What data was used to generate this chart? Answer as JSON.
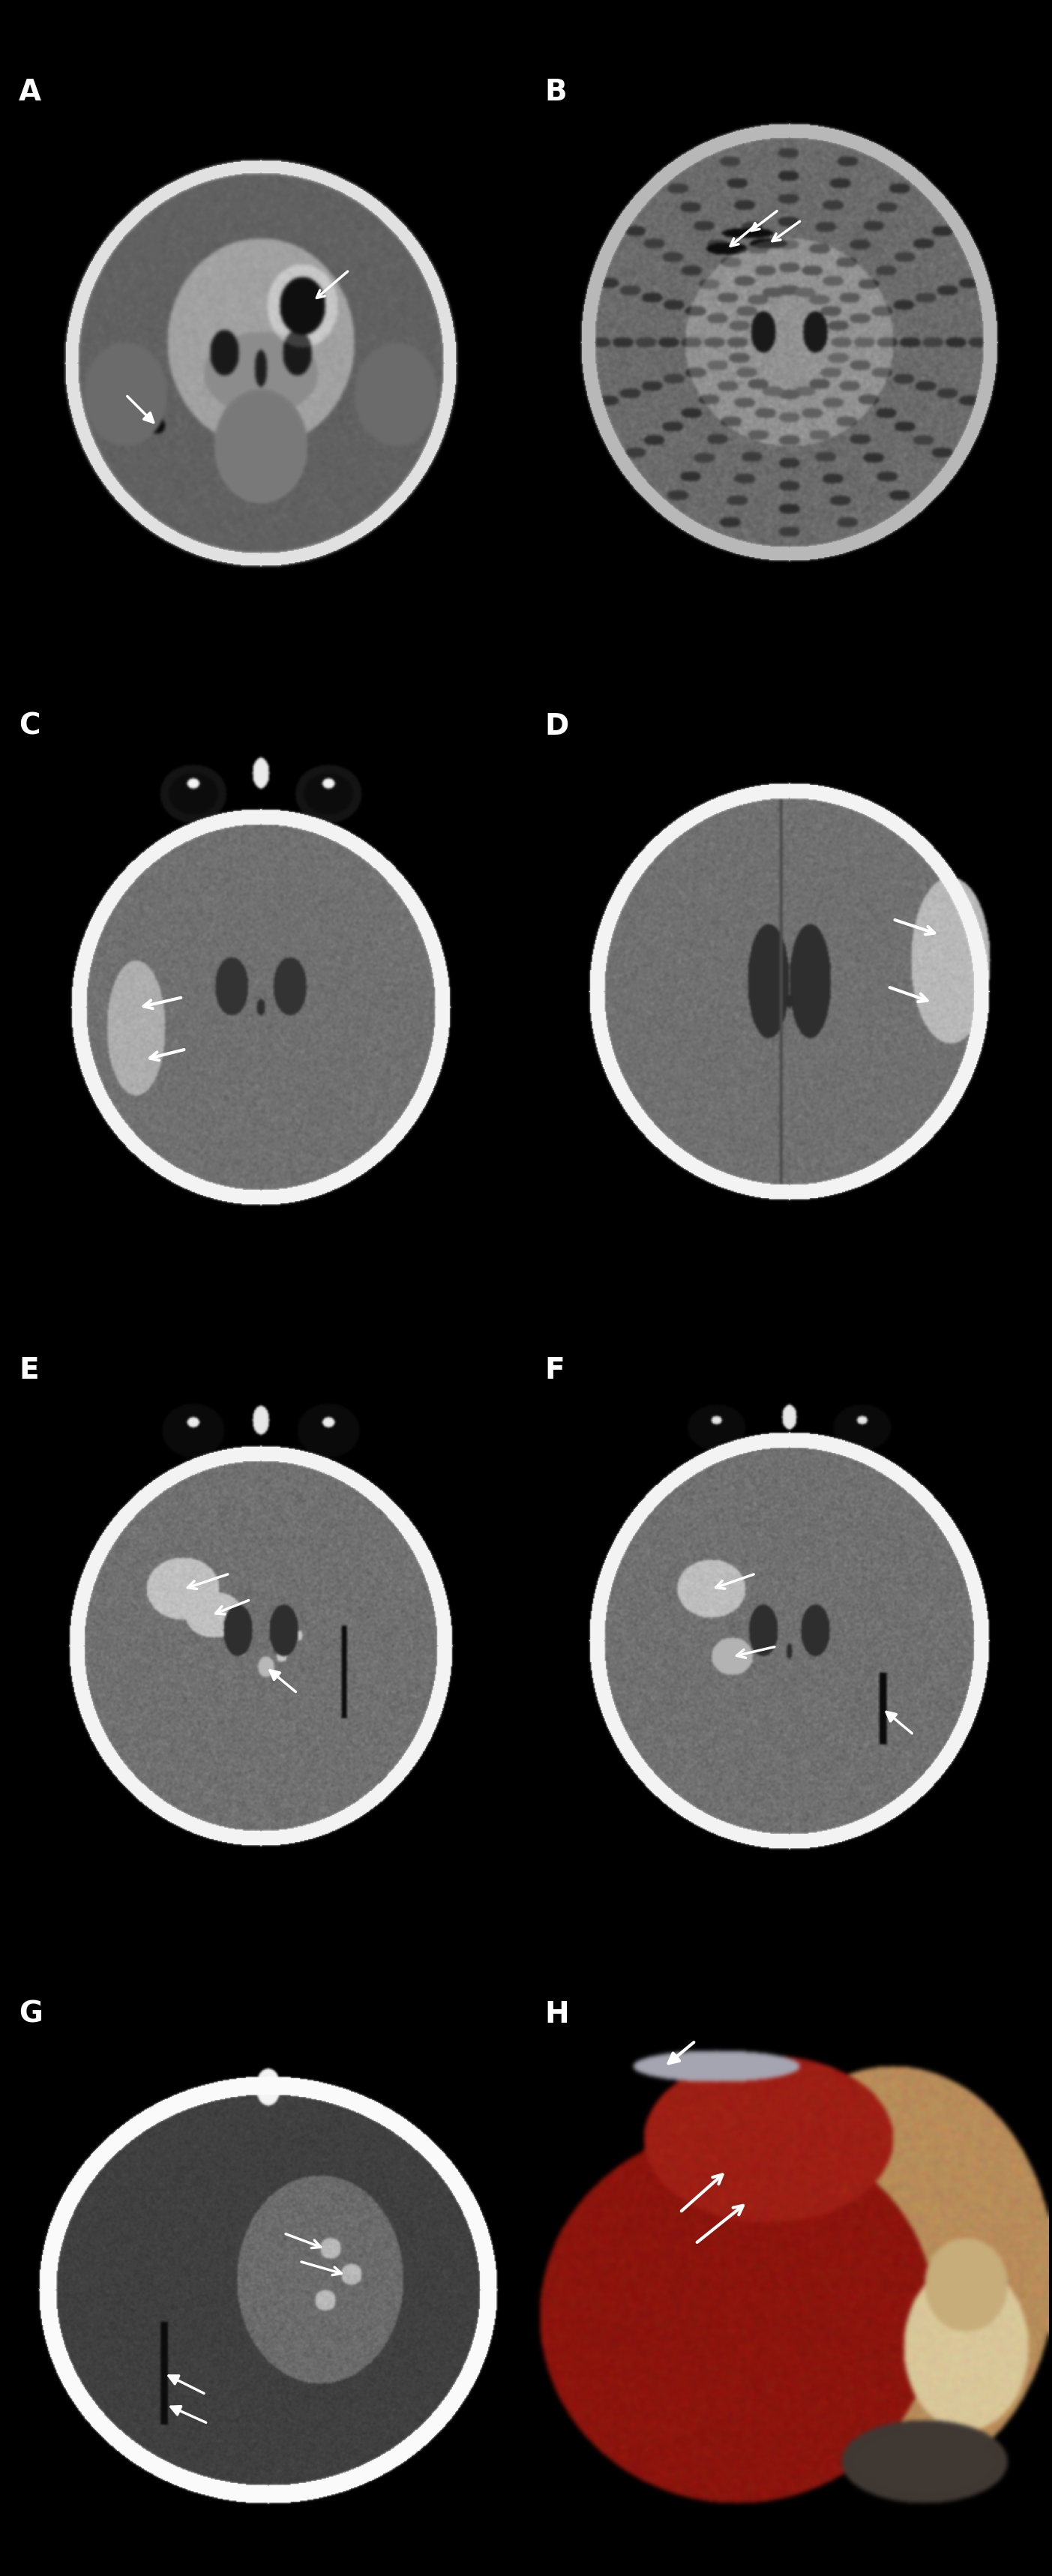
{
  "background_color": "#000000",
  "text_color": "#ffffff",
  "panels": [
    "A",
    "B",
    "C",
    "D",
    "E",
    "F",
    "G",
    "H"
  ],
  "layout": {
    "cols": 2,
    "rows": 4,
    "figwidth": 14.03,
    "figheight": 34.36
  },
  "panel_label_fontsize": 28
}
